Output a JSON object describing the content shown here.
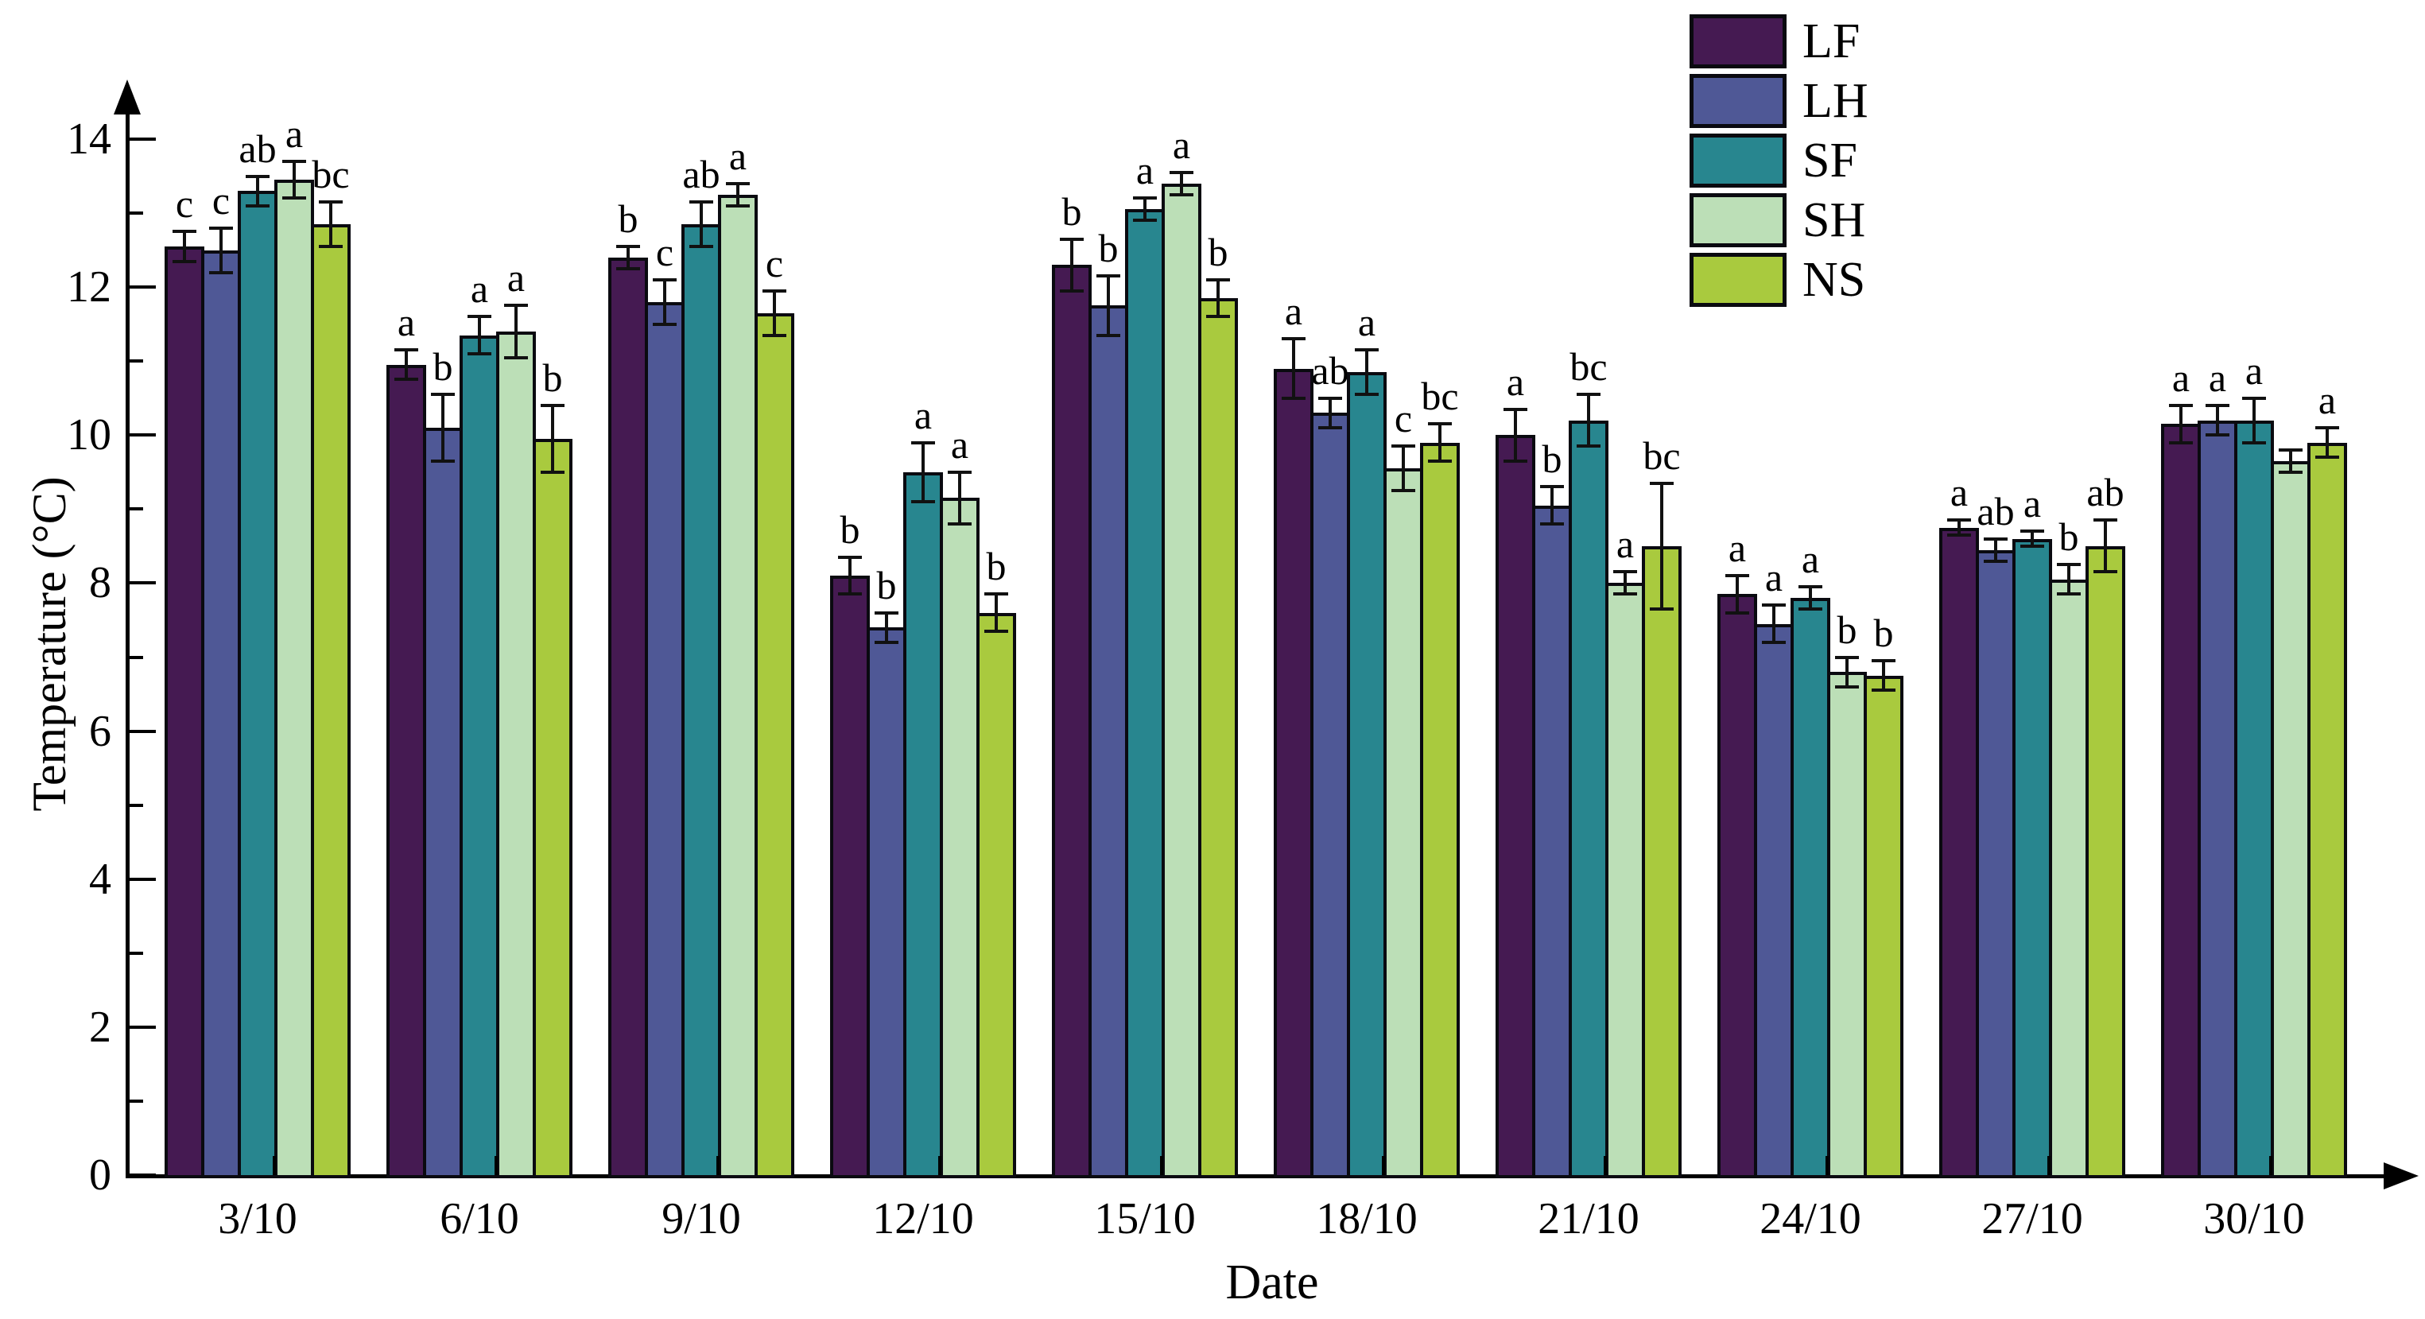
{
  "chart_data": {
    "type": "bar",
    "title": "",
    "xlabel": "Date",
    "ylabel": "Temperature (°C)",
    "ylim": [
      0,
      14
    ],
    "y_major_ticks": [
      0,
      2,
      4,
      6,
      8,
      10,
      12,
      14
    ],
    "y_minor_ticks": [
      1,
      3,
      5,
      7,
      9,
      11,
      13
    ],
    "grid": false,
    "legend_position": "top-right",
    "error_bars": true,
    "categories": [
      "3/10",
      "6/10",
      "9/10",
      "12/10",
      "15/10",
      "18/10",
      "21/10",
      "24/10",
      "27/10",
      "30/10"
    ],
    "series": [
      {
        "name": "LF",
        "color": "#451a52",
        "values": [
          12.55,
          10.95,
          12.4,
          8.1,
          12.3,
          10.9,
          10.0,
          7.85,
          8.75,
          10.15
        ],
        "errors": [
          0.2,
          0.2,
          0.15,
          0.25,
          0.35,
          0.4,
          0.35,
          0.25,
          0.1,
          0.25
        ],
        "letters": [
          "c",
          "a",
          "b",
          "b",
          "b",
          "a",
          "a",
          "a",
          "a",
          "a"
        ]
      },
      {
        "name": "LH",
        "color": "#4f5896",
        "values": [
          12.5,
          10.1,
          11.8,
          7.4,
          11.75,
          10.3,
          9.05,
          7.45,
          8.45,
          10.2
        ],
        "errors": [
          0.3,
          0.45,
          0.3,
          0.2,
          0.4,
          0.2,
          0.25,
          0.25,
          0.15,
          0.2
        ],
        "letters": [
          "c",
          "b",
          "c",
          "b",
          "b",
          "ab",
          "b",
          "a",
          "ab",
          "a"
        ]
      },
      {
        "name": "SF",
        "color": "#28868f",
        "values": [
          13.3,
          11.35,
          12.85,
          9.5,
          13.05,
          10.85,
          10.2,
          7.8,
          8.6,
          10.2
        ],
        "errors": [
          0.2,
          0.25,
          0.3,
          0.4,
          0.15,
          0.3,
          0.35,
          0.15,
          0.1,
          0.3
        ],
        "letters": [
          "ab",
          "a",
          "ab",
          "a",
          "a",
          "a",
          "bc",
          "a",
          "a",
          "a"
        ]
      },
      {
        "name": "SH",
        "color": "#bcdfb7",
        "values": [
          13.45,
          11.4,
          13.25,
          9.15,
          13.4,
          9.55,
          8.0,
          6.8,
          8.05,
          9.65
        ],
        "errors": [
          0.25,
          0.35,
          0.15,
          0.35,
          0.15,
          0.3,
          0.15,
          0.2,
          0.2,
          0.15
        ],
        "letters": [
          "a",
          "a",
          "a",
          "a",
          "a",
          "c",
          "a",
          "b",
          "b",
          ""
        ]
      },
      {
        "name": "NS",
        "color": "#a9ca3e",
        "values": [
          12.85,
          9.95,
          11.65,
          7.6,
          11.85,
          9.9,
          8.5,
          6.75,
          8.5,
          9.9
        ],
        "errors": [
          0.3,
          0.45,
          0.3,
          0.25,
          0.25,
          0.25,
          0.85,
          0.2,
          0.35,
          0.2
        ],
        "letters": [
          "bc",
          "b",
          "c",
          "b",
          "b",
          "bc",
          "bc",
          "b",
          "ab",
          "a"
        ]
      }
    ]
  }
}
